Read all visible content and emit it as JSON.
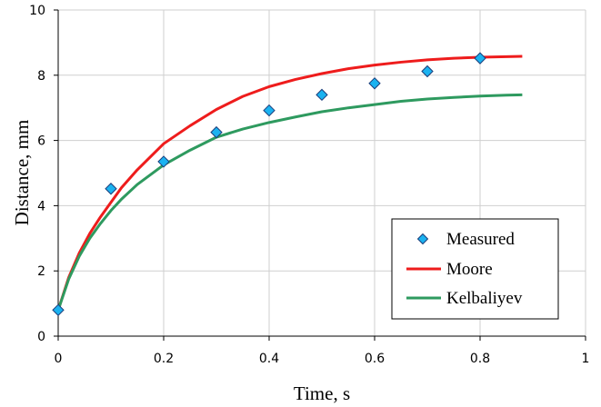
{
  "chart_data": {
    "type": "line",
    "title": "",
    "xlabel": "Time, s",
    "ylabel": "Distance, mm",
    "xlim": [
      0,
      1
    ],
    "ylim": [
      0,
      10
    ],
    "x_ticks": [
      0,
      0.2,
      0.4,
      0.6,
      0.8,
      1
    ],
    "x_tick_labels": [
      "0",
      "0.2",
      "0.4",
      "0.6",
      "0.8",
      "1"
    ],
    "y_ticks": [
      0,
      2,
      4,
      6,
      8,
      10
    ],
    "y_tick_labels": [
      "0",
      "2",
      "4",
      "6",
      "8",
      "10"
    ],
    "grid": true,
    "legend_position": "bottom-right",
    "series": [
      {
        "name": "Measured",
        "kind": "scatter",
        "marker": "diamond",
        "color": "#1ab2f0",
        "x": [
          0,
          0.1,
          0.2,
          0.3,
          0.4,
          0.5,
          0.6,
          0.7,
          0.8
        ],
        "y": [
          0.8,
          4.52,
          5.35,
          6.25,
          6.92,
          7.4,
          7.75,
          8.12,
          8.52
        ]
      },
      {
        "name": "Moore",
        "kind": "line",
        "color": "#ee1c1c",
        "x": [
          0,
          0.02,
          0.04,
          0.06,
          0.08,
          0.1,
          0.12,
          0.15,
          0.2,
          0.25,
          0.3,
          0.35,
          0.4,
          0.45,
          0.5,
          0.55,
          0.6,
          0.65,
          0.7,
          0.75,
          0.8,
          0.85,
          0.88
        ],
        "y": [
          0.8,
          1.8,
          2.55,
          3.15,
          3.65,
          4.1,
          4.55,
          5.1,
          5.9,
          6.45,
          6.95,
          7.35,
          7.65,
          7.87,
          8.05,
          8.2,
          8.31,
          8.4,
          8.47,
          8.52,
          8.55,
          8.57,
          8.58
        ]
      },
      {
        "name": "Kelbaliyev",
        "kind": "line",
        "color": "#2e9a5f",
        "x": [
          0,
          0.02,
          0.04,
          0.06,
          0.08,
          0.1,
          0.12,
          0.15,
          0.2,
          0.25,
          0.3,
          0.35,
          0.4,
          0.45,
          0.5,
          0.55,
          0.6,
          0.65,
          0.7,
          0.75,
          0.8,
          0.85,
          0.88
        ],
        "y": [
          0.8,
          1.75,
          2.45,
          3.0,
          3.45,
          3.85,
          4.2,
          4.65,
          5.25,
          5.7,
          6.1,
          6.35,
          6.55,
          6.72,
          6.88,
          7.0,
          7.1,
          7.2,
          7.27,
          7.32,
          7.36,
          7.39,
          7.4
        ]
      }
    ]
  }
}
